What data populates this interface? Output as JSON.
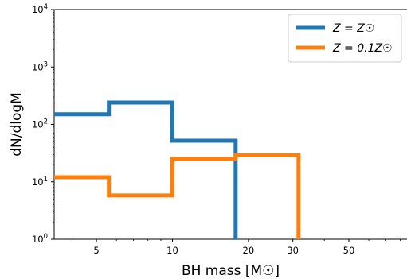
{
  "chart_data": {
    "type": "line",
    "step": true,
    "x_scale": "log",
    "y_scale": "log",
    "xlim": [
      3.4,
      85
    ],
    "ylim": [
      1,
      10000
    ],
    "xlabel": "BH mass [M☉]",
    "ylabel": "dN/dlogM",
    "x_tick_labels": [
      {
        "value": 5,
        "label": "5"
      },
      {
        "value": 10,
        "label": "10"
      },
      {
        "value": 20,
        "label": "20"
      },
      {
        "value": 30,
        "label": "30"
      },
      {
        "value": 50,
        "label": "50"
      }
    ],
    "y_tick_labels": [
      {
        "value": 1,
        "base": "10",
        "exp": "0"
      },
      {
        "value": 10,
        "base": "10",
        "exp": "1"
      },
      {
        "value": 100,
        "base": "10",
        "exp": "2"
      },
      {
        "value": 1000,
        "base": "10",
        "exp": "3"
      },
      {
        "value": 10000,
        "base": "10",
        "exp": "4"
      }
    ],
    "legend_position": "top-right",
    "series": [
      {
        "name": "Z = Z☉",
        "color": "#1f77b4",
        "bin_edges": [
          3.4,
          5.6,
          10,
          17.8
        ],
        "values": [
          150,
          240,
          52
        ]
      },
      {
        "name": "Z = 0.1Z☉",
        "color": "#ff7f0e",
        "bin_edges": [
          3.4,
          5.6,
          10,
          17.8,
          31.6
        ],
        "values": [
          12,
          5.8,
          25,
          29
        ]
      }
    ]
  }
}
